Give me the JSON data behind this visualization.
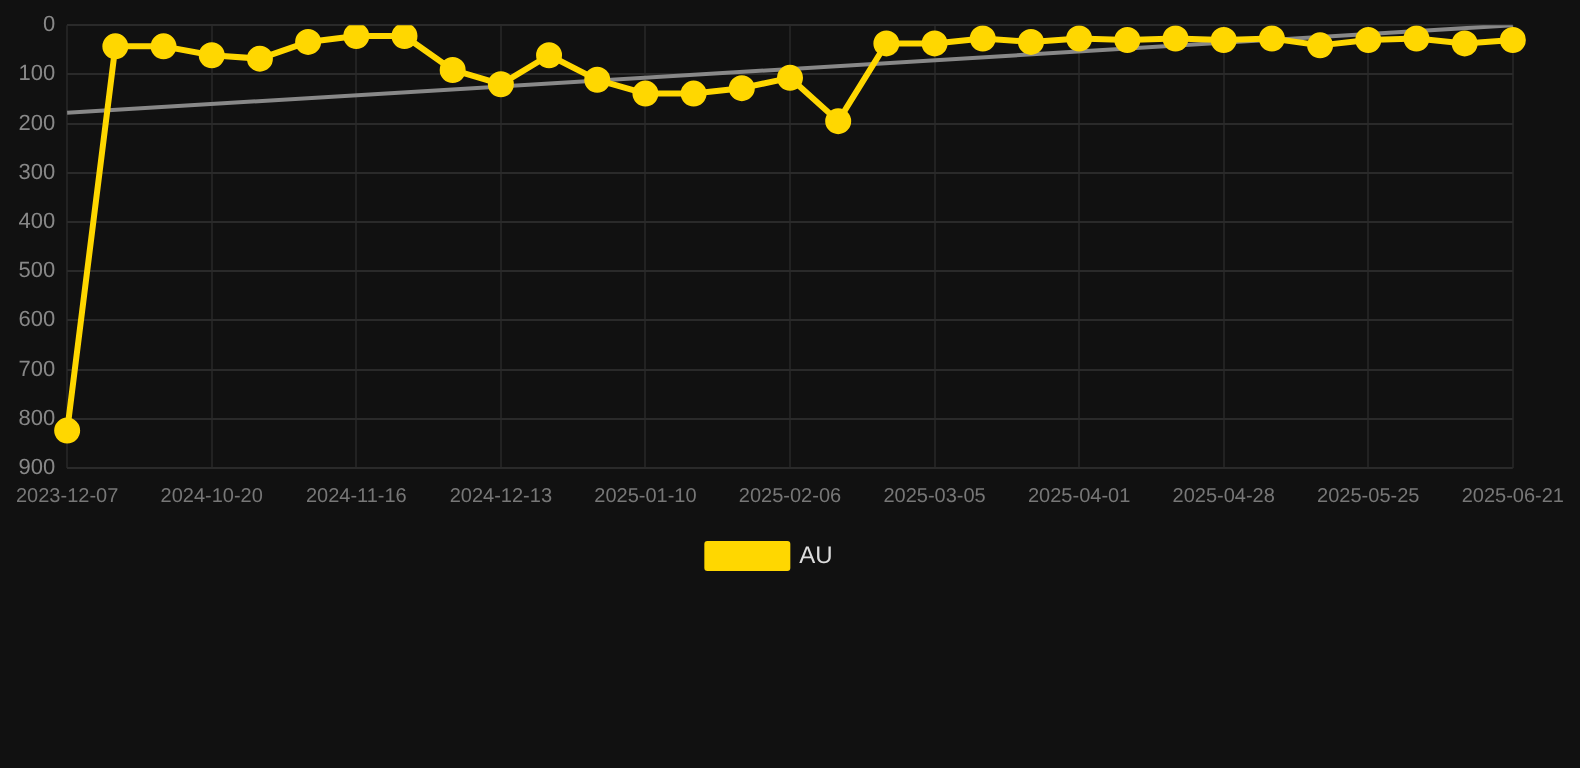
{
  "chart_data": {
    "type": "line",
    "categories": [
      "2023-12-07",
      null,
      null,
      "2024-10-20",
      null,
      null,
      "2024-11-16",
      null,
      null,
      "2024-12-13",
      null,
      null,
      "2025-01-10",
      null,
      null,
      "2025-02-06",
      null,
      null,
      "2025-03-05",
      null,
      null,
      "2025-04-01",
      null,
      null,
      "2025-04-28",
      null,
      null,
      "2025-05-25",
      null,
      null,
      "2025-06-21"
    ],
    "series": [
      {
        "name": "AU",
        "color": "#ffd700",
        "values": [
          824,
          43,
          43,
          61,
          68,
          34,
          22,
          22,
          91,
          120,
          61,
          111,
          139,
          139,
          128,
          107,
          195,
          37,
          37,
          27,
          34,
          27,
          30,
          27,
          30,
          27,
          41,
          30,
          27,
          37,
          30
        ]
      },
      {
        "type": "line",
        "color": "#888888",
        "values": [
          178,
          null,
          null,
          null,
          null,
          null,
          null,
          null,
          null,
          null,
          null,
          null,
          null,
          null,
          null,
          null,
          null,
          null,
          null,
          null,
          null,
          null,
          null,
          null,
          null,
          null,
          null,
          null,
          null,
          null,
          0
        ],
        "marker": "none"
      }
    ],
    "ylim": [
      900,
      0
    ],
    "yticks": [
      0,
      100,
      200,
      300,
      400,
      500,
      600,
      700,
      800,
      900
    ],
    "grid": true,
    "legend": "bottom",
    "marker": "circle",
    "line_style": "solid"
  }
}
